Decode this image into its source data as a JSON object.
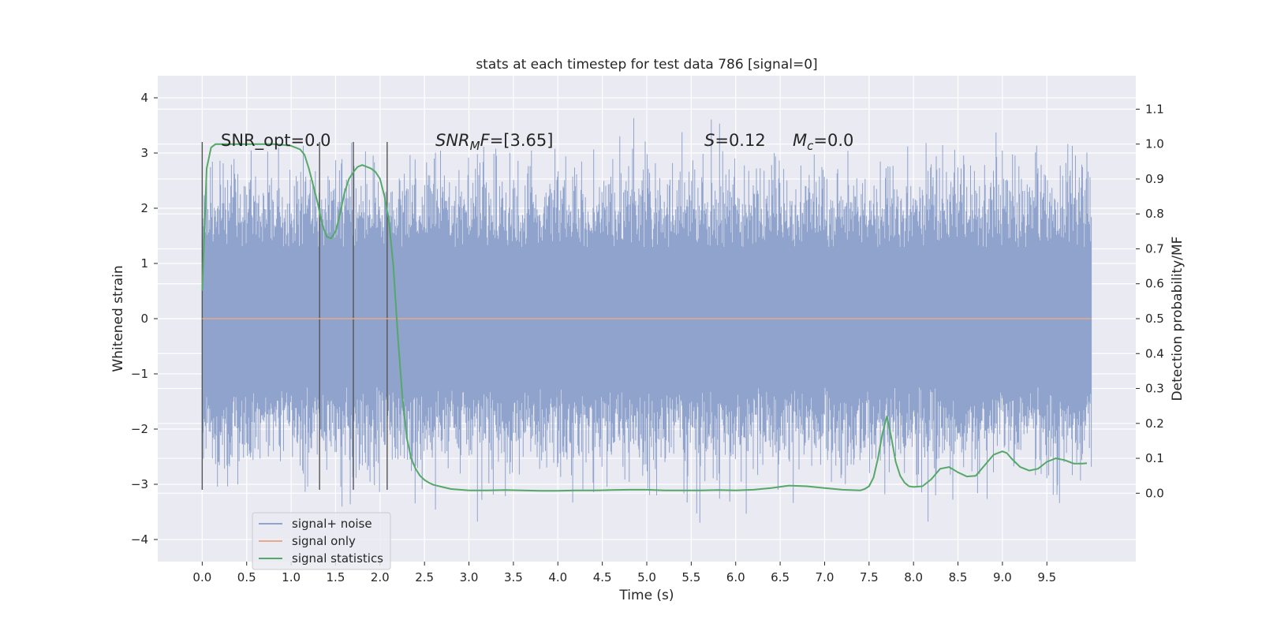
{
  "chart_data": {
    "type": "line",
    "title": "stats at each timestep for test data 786 [signal=0]",
    "xlabel": "Time (s)",
    "ylabel_left": "Whitened strain",
    "ylabel_right": "Detection probability/MF",
    "xlim": [
      -0.5,
      10.5
    ],
    "ylim_left": [
      -4.4,
      4.4
    ],
    "ylim_right": [
      -0.1958,
      1.1958
    ],
    "xticks": [
      "0.0",
      "0.5",
      "1.0",
      "1.5",
      "2.0",
      "2.5",
      "3.0",
      "3.5",
      "4.0",
      "4.5",
      "5.0",
      "5.5",
      "6.0",
      "6.5",
      "7.0",
      "7.5",
      "8.0",
      "8.5",
      "9.0",
      "9.5"
    ],
    "yticks_left": [
      "4",
      "3",
      "2",
      "1",
      "0",
      "−1",
      "−2",
      "−3",
      "−4"
    ],
    "yticks_right": [
      "1.1",
      "1.0",
      "0.9",
      "0.8",
      "0.7",
      "0.6",
      "0.5",
      "0.4",
      "0.3",
      "0.2",
      "0.1",
      "0.0"
    ],
    "grid": true,
    "legend_position": "lower-left",
    "annotations": {
      "snr_opt": "SNR_opt=0.0",
      "snr_mf_main": "SNR",
      "snr_mf_sub": "M",
      "snr_mf_f": "F",
      "snr_mf_value": "=[3.65]",
      "s_main": "S",
      "s_value": "=0.12",
      "mc_main": "M",
      "mc_sub": "c",
      "mc_value": "=0.0"
    },
    "series": [
      {
        "name": "signal+ noise",
        "color": "#8fa3cc",
        "axis": "left",
        "x_range": [
          0,
          10
        ],
        "description_level": "noise",
        "noise_std": 1.0,
        "dense_band": [
          -1.25,
          1.3
        ]
      },
      {
        "name": "signal only",
        "color": "#e6a98a",
        "axis": "left",
        "x": [
          0,
          10
        ],
        "y": [
          0,
          0
        ]
      },
      {
        "name": "signal statistics",
        "color": "#55a868",
        "axis": "right",
        "x": [
          0.0,
          0.05,
          0.1,
          0.15,
          0.2,
          0.3,
          0.4,
          0.5,
          0.6,
          0.7,
          0.8,
          0.9,
          1.0,
          1.05,
          1.1,
          1.15,
          1.2,
          1.25,
          1.3,
          1.35,
          1.4,
          1.45,
          1.5,
          1.55,
          1.6,
          1.65,
          1.7,
          1.75,
          1.8,
          1.85,
          1.9,
          1.95,
          2.0,
          2.05,
          2.1,
          2.15,
          2.2,
          2.25,
          2.3,
          2.35,
          2.4,
          2.45,
          2.5,
          2.55,
          2.6,
          2.7,
          2.8,
          2.9,
          3.0,
          3.2,
          3.4,
          3.6,
          3.8,
          4.0,
          4.2,
          4.4,
          4.6,
          4.8,
          5.0,
          5.2,
          5.4,
          5.6,
          5.8,
          6.0,
          6.2,
          6.4,
          6.6,
          6.8,
          7.0,
          7.2,
          7.4,
          7.45,
          7.5,
          7.55,
          7.6,
          7.65,
          7.7,
          7.75,
          7.8,
          7.85,
          7.9,
          7.95,
          8.0,
          8.1,
          8.2,
          8.3,
          8.4,
          8.5,
          8.6,
          8.7,
          8.8,
          8.9,
          9.0,
          9.05,
          9.1,
          9.2,
          9.3,
          9.4,
          9.5,
          9.6,
          9.7,
          9.8,
          9.9,
          9.95
        ],
        "y": [
          0.58,
          0.93,
          0.99,
          1.0,
          1.0,
          1.0,
          1.0,
          1.0,
          1.0,
          1.0,
          1.0,
          0.998,
          0.995,
          0.99,
          0.985,
          0.97,
          0.93,
          0.88,
          0.83,
          0.77,
          0.735,
          0.73,
          0.75,
          0.8,
          0.86,
          0.9,
          0.92,
          0.935,
          0.94,
          0.935,
          0.93,
          0.92,
          0.9,
          0.85,
          0.78,
          0.65,
          0.45,
          0.28,
          0.16,
          0.1,
          0.07,
          0.05,
          0.038,
          0.03,
          0.024,
          0.018,
          0.012,
          0.01,
          0.008,
          0.008,
          0.009,
          0.008,
          0.007,
          0.007,
          0.008,
          0.008,
          0.009,
          0.01,
          0.01,
          0.008,
          0.008,
          0.008,
          0.009,
          0.008,
          0.01,
          0.015,
          0.022,
          0.02,
          0.015,
          0.01,
          0.008,
          0.012,
          0.02,
          0.045,
          0.1,
          0.17,
          0.22,
          0.16,
          0.09,
          0.05,
          0.03,
          0.02,
          0.018,
          0.02,
          0.04,
          0.07,
          0.075,
          0.06,
          0.048,
          0.05,
          0.08,
          0.11,
          0.12,
          0.115,
          0.1,
          0.075,
          0.065,
          0.07,
          0.09,
          0.1,
          0.095,
          0.085,
          0.085,
          0.086
        ]
      }
    ],
    "vertical_markers_x": [
      0.0,
      1.32,
      1.7,
      2.08
    ],
    "legend": [
      "signal+ noise",
      "signal only",
      "signal statistics"
    ]
  }
}
